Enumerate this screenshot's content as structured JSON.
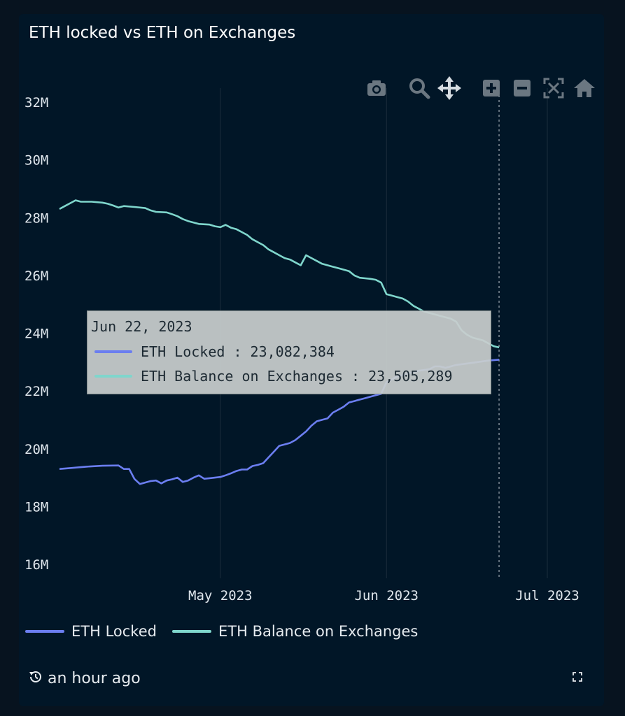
{
  "title": "ETH locked vs ETH on Exchanges",
  "modebar": {
    "icons": [
      "camera-icon",
      "zoom-icon",
      "pan-icon",
      "zoom-in-icon",
      "zoom-out-icon",
      "autoscale-icon",
      "reset-axes-icon"
    ]
  },
  "tooltip": {
    "date": "Jun 22, 2023",
    "rows": [
      {
        "label": "ETH Locked : 23,082,384"
      },
      {
        "label": "ETH Balance on Exchanges : 23,505,289"
      }
    ]
  },
  "legend": {
    "items": [
      {
        "label": "ETH Locked"
      },
      {
        "label": "ETH Balance on Exchanges"
      }
    ]
  },
  "footer": {
    "updated": "an hour ago"
  },
  "colors": {
    "background": "#011627",
    "locked": "#6b7ef0",
    "exchanges": "#7fd6cc",
    "text": "#e6ebef"
  },
  "chart_data": {
    "type": "line",
    "title": "ETH locked vs ETH on Exchanges",
    "xlabel": "",
    "ylabel": "",
    "x_range": [
      "2023-04-01",
      "2023-07-01"
    ],
    "ylim": [
      16000000,
      32000000
    ],
    "y_ticks": [
      16000000,
      18000000,
      20000000,
      22000000,
      24000000,
      26000000,
      28000000,
      30000000,
      32000000
    ],
    "y_tick_labels": [
      "16M",
      "18M",
      "20M",
      "22M",
      "24M",
      "26M",
      "28M",
      "30M",
      "32M"
    ],
    "x_ticks": [
      "2023-05-01",
      "2023-06-01",
      "2023-07-01"
    ],
    "x_tick_labels": [
      "May 2023",
      "Jun 2023",
      "Jul 2023"
    ],
    "grid": "vertical",
    "legend_position": "bottom-left",
    "hover_x": "2023-06-22",
    "series": [
      {
        "name": "ETH Locked",
        "color": "#6b7ef0",
        "points": [
          [
            "2023-04-01",
            19300000
          ],
          [
            "2023-04-03",
            19330000
          ],
          [
            "2023-04-06",
            19380000
          ],
          [
            "2023-04-09",
            19410000
          ],
          [
            "2023-04-12",
            19420000
          ],
          [
            "2023-04-13",
            19300000
          ],
          [
            "2023-04-14",
            19300000
          ],
          [
            "2023-04-15",
            18950000
          ],
          [
            "2023-04-16",
            18780000
          ],
          [
            "2023-04-17",
            18830000
          ],
          [
            "2023-04-18",
            18880000
          ],
          [
            "2023-04-19",
            18900000
          ],
          [
            "2023-04-20",
            18800000
          ],
          [
            "2023-04-21",
            18900000
          ],
          [
            "2023-04-22",
            18940000
          ],
          [
            "2023-04-23",
            19000000
          ],
          [
            "2023-04-24",
            18850000
          ],
          [
            "2023-04-25",
            18900000
          ],
          [
            "2023-04-26",
            19000000
          ],
          [
            "2023-04-27",
            19080000
          ],
          [
            "2023-04-28",
            18960000
          ],
          [
            "2023-04-29",
            18980000
          ],
          [
            "2023-04-30",
            19000000
          ],
          [
            "2023-05-01",
            19020000
          ],
          [
            "2023-05-02",
            19080000
          ],
          [
            "2023-05-03",
            19150000
          ],
          [
            "2023-05-04",
            19230000
          ],
          [
            "2023-05-05",
            19280000
          ],
          [
            "2023-05-06",
            19280000
          ],
          [
            "2023-05-07",
            19400000
          ],
          [
            "2023-05-08",
            19440000
          ],
          [
            "2023-05-09",
            19500000
          ],
          [
            "2023-05-10",
            19700000
          ],
          [
            "2023-05-11",
            19900000
          ],
          [
            "2023-05-12",
            20100000
          ],
          [
            "2023-05-13",
            20150000
          ],
          [
            "2023-05-14",
            20200000
          ],
          [
            "2023-05-15",
            20300000
          ],
          [
            "2023-05-16",
            20450000
          ],
          [
            "2023-05-17",
            20600000
          ],
          [
            "2023-05-18",
            20800000
          ],
          [
            "2023-05-19",
            20950000
          ],
          [
            "2023-05-20",
            21000000
          ],
          [
            "2023-05-21",
            21050000
          ],
          [
            "2023-05-22",
            21250000
          ],
          [
            "2023-05-23",
            21350000
          ],
          [
            "2023-05-24",
            21450000
          ],
          [
            "2023-05-25",
            21600000
          ],
          [
            "2023-05-26",
            21650000
          ],
          [
            "2023-05-27",
            21700000
          ],
          [
            "2023-05-28",
            21750000
          ],
          [
            "2023-05-29",
            21800000
          ],
          [
            "2023-05-30",
            21850000
          ],
          [
            "2023-05-31",
            21900000
          ],
          [
            "2023-06-01",
            22300000
          ],
          [
            "2023-06-02",
            22400000
          ],
          [
            "2023-06-03",
            22500000
          ],
          [
            "2023-06-05",
            22600000
          ],
          [
            "2023-06-07",
            22700000
          ],
          [
            "2023-06-09",
            22750000
          ],
          [
            "2023-06-10",
            22850000
          ],
          [
            "2023-06-11",
            22850000
          ],
          [
            "2023-06-12",
            22800000
          ],
          [
            "2023-06-13",
            22850000
          ],
          [
            "2023-06-14",
            22900000
          ],
          [
            "2023-06-16",
            22950000
          ],
          [
            "2023-06-18",
            23000000
          ],
          [
            "2023-06-20",
            23050000
          ],
          [
            "2023-06-22",
            23082384
          ]
        ]
      },
      {
        "name": "ETH Balance on Exchanges",
        "color": "#7fd6cc",
        "points": [
          [
            "2023-04-01",
            28300000
          ],
          [
            "2023-04-02",
            28400000
          ],
          [
            "2023-04-03",
            28500000
          ],
          [
            "2023-04-04",
            28600000
          ],
          [
            "2023-04-05",
            28550000
          ],
          [
            "2023-04-07",
            28550000
          ],
          [
            "2023-04-09",
            28520000
          ],
          [
            "2023-04-10",
            28480000
          ],
          [
            "2023-04-11",
            28420000
          ],
          [
            "2023-04-12",
            28350000
          ],
          [
            "2023-04-13",
            28400000
          ],
          [
            "2023-04-15",
            28370000
          ],
          [
            "2023-04-17",
            28330000
          ],
          [
            "2023-04-18",
            28250000
          ],
          [
            "2023-04-19",
            28200000
          ],
          [
            "2023-04-21",
            28180000
          ],
          [
            "2023-04-22",
            28120000
          ],
          [
            "2023-04-23",
            28050000
          ],
          [
            "2023-04-24",
            27950000
          ],
          [
            "2023-04-25",
            27880000
          ],
          [
            "2023-04-26",
            27830000
          ],
          [
            "2023-04-27",
            27780000
          ],
          [
            "2023-04-29",
            27760000
          ],
          [
            "2023-04-30",
            27700000
          ],
          [
            "2023-05-01",
            27670000
          ],
          [
            "2023-05-02",
            27750000
          ],
          [
            "2023-05-03",
            27650000
          ],
          [
            "2023-05-04",
            27600000
          ],
          [
            "2023-05-05",
            27500000
          ],
          [
            "2023-05-06",
            27400000
          ],
          [
            "2023-05-07",
            27250000
          ],
          [
            "2023-05-08",
            27150000
          ],
          [
            "2023-05-09",
            27050000
          ],
          [
            "2023-05-10",
            26900000
          ],
          [
            "2023-05-11",
            26800000
          ],
          [
            "2023-05-12",
            26700000
          ],
          [
            "2023-05-13",
            26600000
          ],
          [
            "2023-05-14",
            26550000
          ],
          [
            "2023-05-15",
            26450000
          ],
          [
            "2023-05-16",
            26350000
          ],
          [
            "2023-05-17",
            26700000
          ],
          [
            "2023-05-18",
            26600000
          ],
          [
            "2023-05-19",
            26500000
          ],
          [
            "2023-05-20",
            26400000
          ],
          [
            "2023-05-21",
            26350000
          ],
          [
            "2023-05-22",
            26300000
          ],
          [
            "2023-05-23",
            26250000
          ],
          [
            "2023-05-24",
            26200000
          ],
          [
            "2023-05-25",
            26150000
          ],
          [
            "2023-05-26",
            26000000
          ],
          [
            "2023-05-27",
            25920000
          ],
          [
            "2023-05-28",
            25900000
          ],
          [
            "2023-05-29",
            25880000
          ],
          [
            "2023-05-30",
            25850000
          ],
          [
            "2023-05-31",
            25750000
          ],
          [
            "2023-06-01",
            25350000
          ],
          [
            "2023-06-02",
            25300000
          ],
          [
            "2023-06-03",
            25250000
          ],
          [
            "2023-06-04",
            25200000
          ],
          [
            "2023-06-05",
            25100000
          ],
          [
            "2023-06-06",
            24950000
          ],
          [
            "2023-06-07",
            24850000
          ],
          [
            "2023-06-08",
            24750000
          ],
          [
            "2023-06-09",
            24700000
          ],
          [
            "2023-06-10",
            24650000
          ],
          [
            "2023-06-11",
            24600000
          ],
          [
            "2023-06-12",
            24550000
          ],
          [
            "2023-06-13",
            24500000
          ],
          [
            "2023-06-14",
            24400000
          ],
          [
            "2023-06-15",
            24100000
          ],
          [
            "2023-06-16",
            23950000
          ],
          [
            "2023-06-17",
            23850000
          ],
          [
            "2023-06-18",
            23800000
          ],
          [
            "2023-06-19",
            23750000
          ],
          [
            "2023-06-20",
            23650000
          ],
          [
            "2023-06-21",
            23550000
          ],
          [
            "2023-06-22",
            23505289
          ]
        ]
      }
    ]
  }
}
